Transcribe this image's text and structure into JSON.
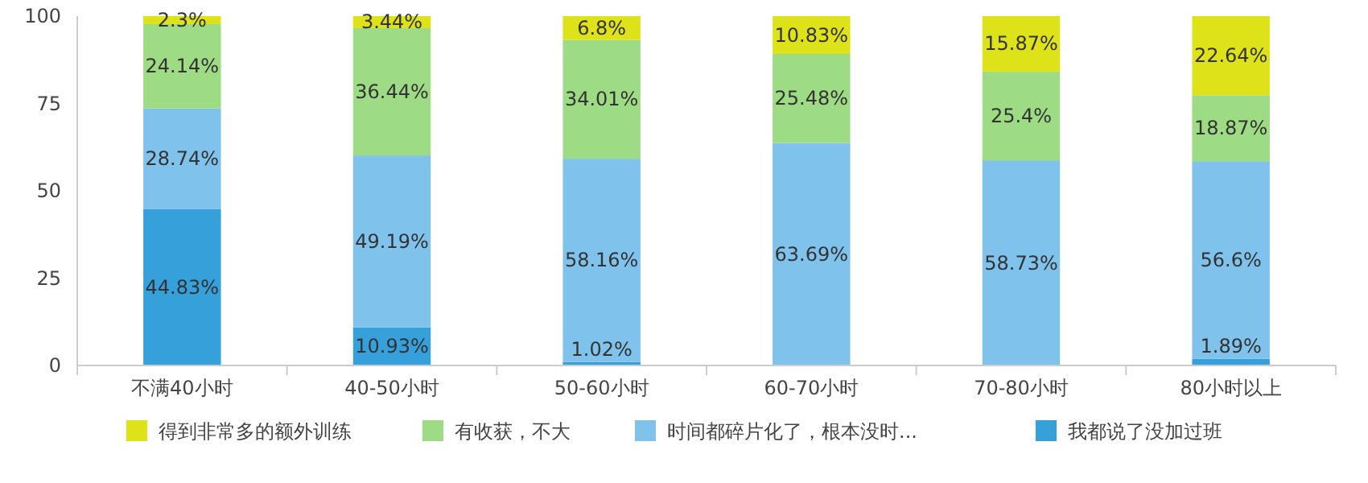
{
  "chart_data": {
    "type": "bar",
    "stacked": true,
    "categories": [
      "不满40小时",
      "40-50小时",
      "50-60小时",
      "60-70小时",
      "70-80小时",
      "80小时以上"
    ],
    "series": [
      {
        "name": "我都说了没加过班",
        "color": "#35a0da",
        "values": [
          44.83,
          10.93,
          1.02,
          0,
          0,
          1.89
        ],
        "value_labels": [
          "44.83%",
          "10.93%",
          "1.02%",
          null,
          null,
          "1.89%"
        ]
      },
      {
        "name": "时间都碎片化了，根本没时...",
        "color": "#7fc2ec",
        "values": [
          28.74,
          49.19,
          58.16,
          63.69,
          58.73,
          56.6
        ],
        "value_labels": [
          "28.74%",
          "49.19%",
          "58.16%",
          "63.69%",
          "58.73%",
          "56.6%"
        ]
      },
      {
        "name": "有收获，不大",
        "color": "#9ddc84",
        "values": [
          24.14,
          36.44,
          34.01,
          25.48,
          25.4,
          18.87
        ],
        "value_labels": [
          "24.14%",
          "36.44%",
          "34.01%",
          "25.48%",
          "25.4%",
          "18.87%"
        ]
      },
      {
        "name": "得到非常多的额外训练",
        "color": "#dde219",
        "values": [
          2.3,
          3.44,
          6.8,
          10.83,
          15.87,
          22.64
        ],
        "value_labels": [
          "2.3%",
          "3.44%",
          "6.8%",
          "10.83%",
          "15.87%",
          "22.64%"
        ]
      }
    ],
    "ylim": [
      0,
      100
    ],
    "yticks": [
      0,
      25,
      50,
      75,
      100
    ],
    "grid": false,
    "legend": "bottom"
  }
}
